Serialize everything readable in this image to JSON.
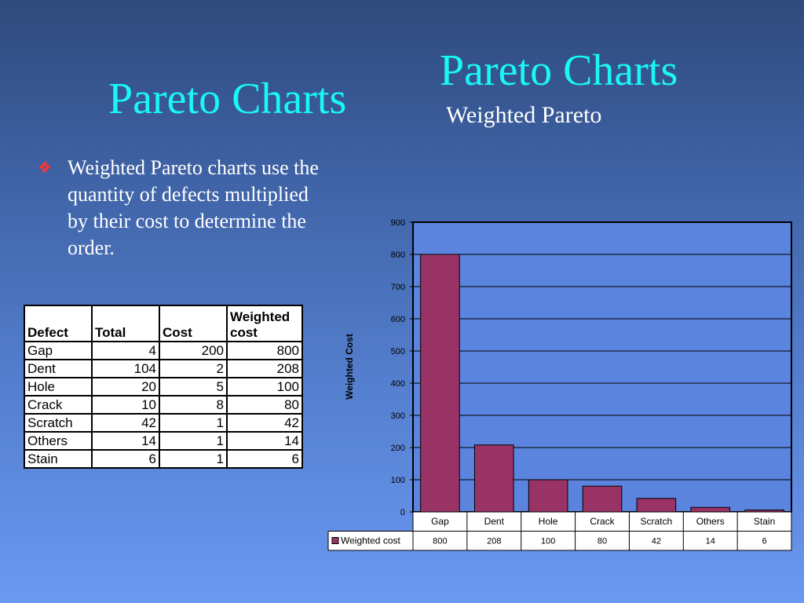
{
  "slide": {
    "title_left": "Pareto Charts",
    "title_right": "Pareto Charts",
    "subtitle": "Weighted Pareto",
    "bullet": "Weighted Pareto charts use the quantity of defects multiplied by their cost to determine the order."
  },
  "table": {
    "headers": [
      "Defect",
      "Total",
      "Cost",
      "Weighted cost"
    ],
    "rows": [
      [
        "Gap",
        "4",
        "200",
        "800"
      ],
      [
        "Dent",
        "104",
        "2",
        "208"
      ],
      [
        "Hole",
        "20",
        "5",
        "100"
      ],
      [
        "Crack",
        "10",
        "8",
        "80"
      ],
      [
        "Scratch",
        "42",
        "1",
        "42"
      ],
      [
        "Others",
        "14",
        "1",
        "14"
      ],
      [
        "Stain",
        "6",
        "1",
        "6"
      ]
    ]
  },
  "chart_data": {
    "type": "bar",
    "categories": [
      "Gap",
      "Dent",
      "Hole",
      "Crack",
      "Scratch",
      "Others",
      "Stain"
    ],
    "series": [
      {
        "name": "Weighted cost",
        "values": [
          800,
          208,
          100,
          80,
          42,
          14,
          6
        ]
      }
    ],
    "ylabel": "Weighted Cost",
    "ylim": [
      0,
      900
    ],
    "yticks": [
      0,
      100,
      200,
      300,
      400,
      500,
      600,
      700,
      800,
      900
    ],
    "grid": true,
    "data_table": true,
    "colors": {
      "bar": "#993366",
      "plot_bg": "#5a84de",
      "table_bg": "#ffffff"
    }
  }
}
